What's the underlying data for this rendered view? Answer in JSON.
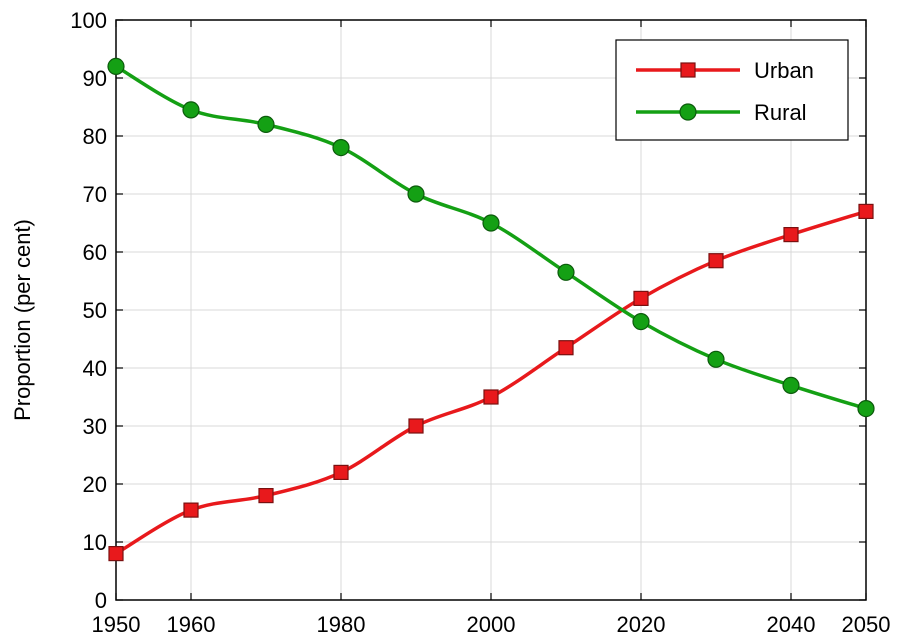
{
  "chart_data": {
    "type": "line",
    "title": "",
    "xlabel": "",
    "ylabel": "Proportion (per cent)",
    "x": [
      1950,
      1960,
      1970,
      1980,
      1990,
      2000,
      2010,
      2020,
      2030,
      2040,
      2050
    ],
    "x_ticks": [
      "1950",
      "1960",
      "1980",
      "2000",
      "2020",
      "2040",
      "2050"
    ],
    "y_ticks": [
      "0",
      "10",
      "20",
      "30",
      "40",
      "50",
      "60",
      "70",
      "80",
      "90",
      "100"
    ],
    "xlim": [
      1950,
      2050
    ],
    "ylim": [
      0,
      100
    ],
    "grid": true,
    "legend_position": "top-right",
    "series": [
      {
        "name": "Urban",
        "color": "#e8191c",
        "marker": "square",
        "values": [
          8,
          15.5,
          18,
          22,
          30,
          35,
          43.5,
          52,
          58.5,
          63,
          67
        ]
      },
      {
        "name": "Rural",
        "color": "#14a014",
        "marker": "circle",
        "values": [
          92,
          84.5,
          82,
          78,
          70,
          65,
          56.5,
          48,
          41.5,
          37,
          33
        ]
      }
    ]
  }
}
